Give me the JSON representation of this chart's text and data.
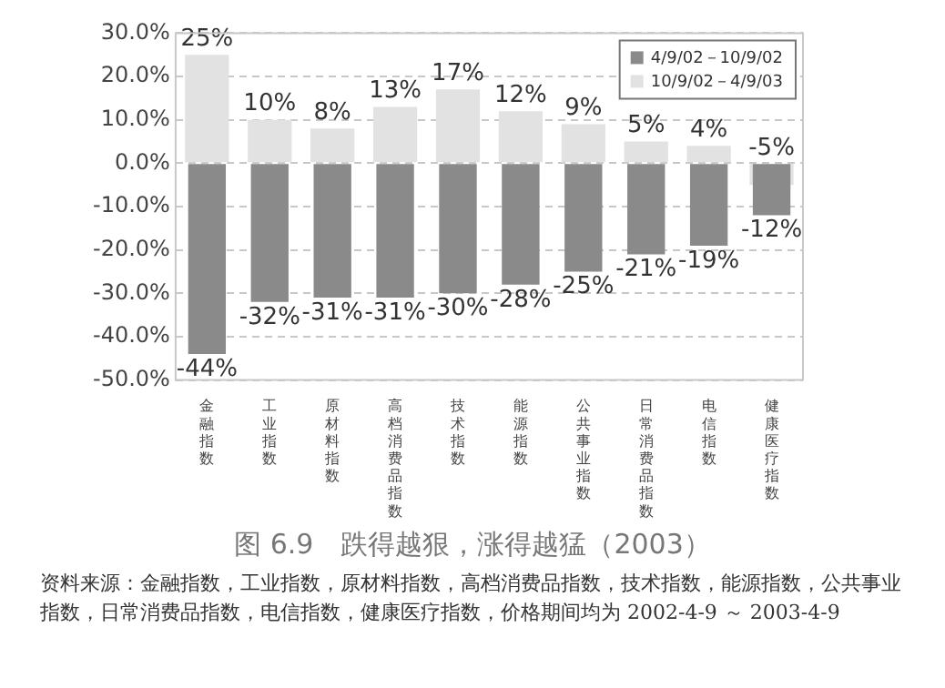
{
  "chart_data": {
    "type": "bar",
    "title": "图 6.9　跌得越狠，涨得越猛（2003）",
    "categories": [
      "金融指数",
      "工业指数",
      "原材料指数",
      "高档消费品指数",
      "技术指数",
      "能源指数",
      "公共事业指数",
      "日常消费品指数",
      "电信指数",
      "健康医疗指数"
    ],
    "series": [
      {
        "name": "4/9/02－10/9/02",
        "color": "#8a8a8a",
        "values": [
          -44,
          -32,
          -31,
          -31,
          -30,
          -28,
          -25,
          -21,
          -19,
          -12
        ],
        "value_labels": [
          "-44%",
          "-32%",
          "-31%",
          "-31%",
          "-30%",
          "-28%",
          "-25%",
          "-21%",
          "-19%",
          "-12%"
        ]
      },
      {
        "name": "10/9/02－4/9/03",
        "color": "#e2e2e2",
        "values": [
          25,
          10,
          8,
          13,
          17,
          12,
          9,
          5,
          4,
          -5
        ],
        "value_labels": [
          "25%",
          "10%",
          "8%",
          "13%",
          "17%",
          "12%",
          "9%",
          "5%",
          "4%",
          "-5%"
        ]
      }
    ],
    "ylim": [
      -50,
      30
    ],
    "yticks": [
      {
        "value": -50,
        "label": "-50.0%"
      },
      {
        "value": -40,
        "label": "-40.0%"
      },
      {
        "value": -30,
        "label": "-30.0%"
      },
      {
        "value": -20,
        "label": "-20.0%"
      },
      {
        "value": -10,
        "label": "-10.0%"
      },
      {
        "value": 0,
        "label": "0.0%"
      },
      {
        "value": 10,
        "label": "10.0%"
      },
      {
        "value": 20,
        "label": "20.0%"
      },
      {
        "value": 30,
        "label": "30.0%"
      }
    ],
    "grid": "y",
    "legend": "top right",
    "annotations": [
      "资料来源：金融指数，工业指数，原材料指数，高档消费品指数，技术指数，能源指数，公共事业指数，日常消费品指数，电信指数，健康医疗指数，价格期间均为 2002-4-9 ～ 2003-4-9"
    ]
  }
}
